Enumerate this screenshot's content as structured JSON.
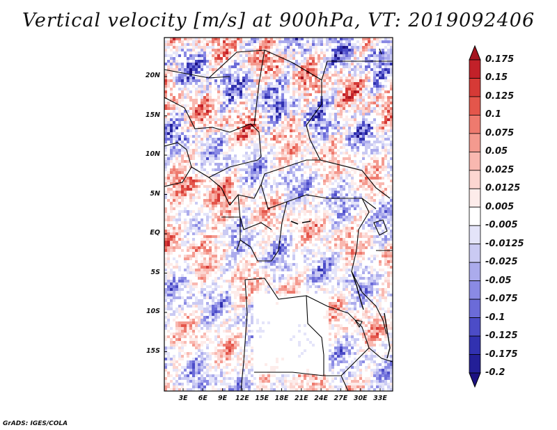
{
  "title": "Vertical velocity [m/s] at 900hPa, VT: 2019092406",
  "credit": "GrADS: IGES/COLA",
  "map": {
    "lat_ticks": [
      "20N",
      "15N",
      "10N",
      "5N",
      "EQ",
      "5S",
      "10S",
      "15S"
    ],
    "lat_values": [
      20,
      15,
      10,
      5,
      0,
      -5,
      -10,
      -15
    ],
    "lon_ticks": [
      "3E",
      "6E",
      "9E",
      "12E",
      "15E",
      "18E",
      "21E",
      "24E",
      "27E",
      "30E",
      "33E"
    ],
    "lon_values": [
      3,
      6,
      9,
      12,
      15,
      18,
      21,
      24,
      27,
      30,
      33
    ]
  },
  "colorbar": {
    "labels": [
      "0.175",
      "0.15",
      "0.125",
      "0.1",
      "0.075",
      "0.05",
      "0.025",
      "0.0125",
      "0.005",
      "-0.005",
      "-0.0125",
      "-0.025",
      "-0.05",
      "-0.075",
      "-0.1",
      "-0.125",
      "-0.175",
      "-0.2"
    ],
    "colors": [
      "#a5141f",
      "#c22129",
      "#d63a36",
      "#e4564b",
      "#ee7a6e",
      "#f49a8f",
      "#f9b8b0",
      "#fcd6d1",
      "#fdecea",
      "#ffffff",
      "#e4e4f9",
      "#cacaf3",
      "#ababec",
      "#8a8ae4",
      "#6b6bd8",
      "#4c4cc7",
      "#3131b0",
      "#231f97",
      "#1c1182"
    ]
  }
}
